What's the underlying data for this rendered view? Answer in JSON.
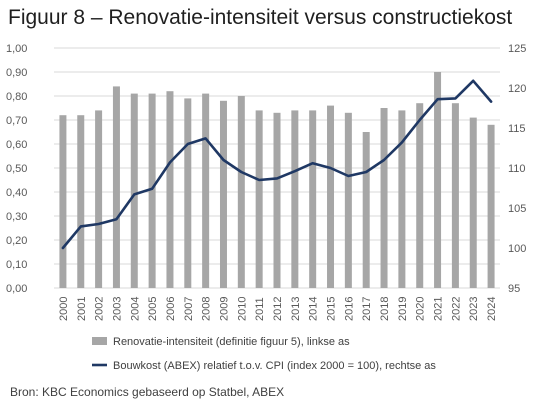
{
  "title": "Figuur 8 – Renovatie-intensiteit versus constructiekost",
  "source": "Bron: KBC Economics gebaseerd op Statbel, ABEX",
  "colors": {
    "bars": "#a6a6a6",
    "line": "#1f3864",
    "grid": "#d9d9d9"
  },
  "chart_data": {
    "type": "bar",
    "categories": [
      "2000",
      "2001",
      "2002",
      "2003",
      "2004",
      "2005",
      "2006",
      "2007",
      "2008",
      "2009",
      "2010",
      "2011",
      "2012",
      "2013",
      "2014",
      "2015",
      "2016",
      "2017",
      "2018",
      "2019",
      "2020",
      "2021",
      "2022",
      "2023",
      "2024"
    ],
    "series": [
      {
        "name": "Renovatie-intensiteit (definitie figuur 5), linkse as",
        "type": "bar",
        "axis": "left",
        "values": [
          0.72,
          0.72,
          0.74,
          0.84,
          0.81,
          0.81,
          0.82,
          0.79,
          0.81,
          0.78,
          0.8,
          0.74,
          0.73,
          0.74,
          0.74,
          0.76,
          0.73,
          0.65,
          0.75,
          0.74,
          0.77,
          0.9,
          0.77,
          0.71,
          0.68
        ]
      },
      {
        "name": "Bouwkost (ABEX) relatief t.o.v. CPI (index 2000 = 100), rechtse as",
        "type": "line",
        "axis": "right",
        "values": [
          100.0,
          102.7,
          103.0,
          103.6,
          106.7,
          107.4,
          110.7,
          113.0,
          113.7,
          111.0,
          109.5,
          108.5,
          108.7,
          109.6,
          110.6,
          110.0,
          109.0,
          109.5,
          111.0,
          113.2,
          116.0,
          118.6,
          118.7,
          120.9,
          118.3
        ]
      }
    ],
    "y_left": {
      "ylim": [
        0,
        1
      ],
      "ticks": [
        "0,00",
        "0,10",
        "0,20",
        "0,30",
        "0,40",
        "0,50",
        "0,60",
        "0,70",
        "0,80",
        "0,90",
        "1,00"
      ]
    },
    "y_right": {
      "ylim": [
        95,
        125
      ],
      "ticks": [
        "95",
        "100",
        "105",
        "110",
        "115",
        "120",
        "125"
      ]
    },
    "grid": true,
    "legend_position": "bottom"
  }
}
